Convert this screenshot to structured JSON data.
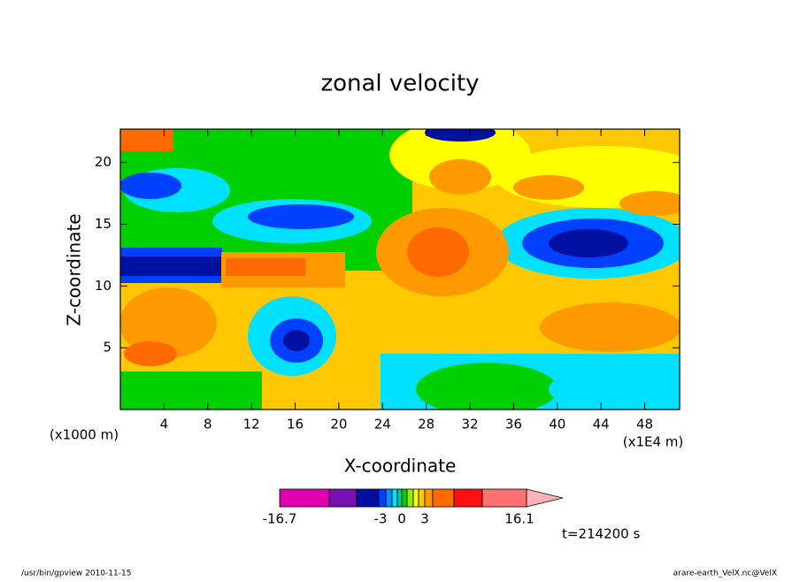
{
  "chart_data": {
    "type": "contour",
    "title": "zonal velocity",
    "x_label": "X-coordinate",
    "y_label": "Z-coordinate",
    "x_unit": "(x1E4 m)",
    "y_unit": "(x1000 m)",
    "xlim": [
      0,
      51.2
    ],
    "ylim": [
      0,
      22.7
    ],
    "xticks": [
      4,
      8,
      12,
      16,
      20,
      24,
      28,
      32,
      36,
      40,
      44,
      48
    ],
    "yticks": [
      5,
      10,
      15,
      20
    ],
    "colorbar": {
      "colors": [
        "#e000b0",
        "#7a10b0",
        "#0010a0",
        "#0040ff",
        "#0090ff",
        "#00e0ff",
        "#00c8a0",
        "#00d000",
        "#90f000",
        "#ffff00",
        "#ffc800",
        "#ff9900",
        "#ff6a00",
        "#ff1010",
        "#ff7070",
        "#ffb0b8"
      ],
      "labels": [
        "-16.7",
        "-3",
        "0",
        "3",
        "16.1"
      ]
    },
    "time_label": "t=214200 s",
    "footer_left": "/usr/bin/gpview  2010-11-15",
    "footer_right": "arare-earth_VelX.nc@VelX"
  }
}
